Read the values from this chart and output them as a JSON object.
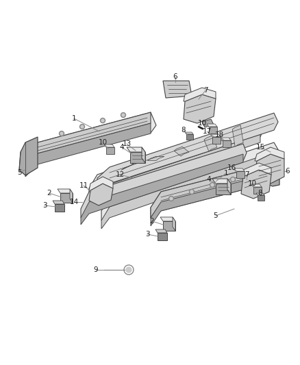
{
  "background_color": "#ffffff",
  "fig_width": 4.38,
  "fig_height": 5.33,
  "dpi": 100,
  "line_color": "#444444",
  "light_fill": "#e8e8e8",
  "mid_fill": "#cccccc",
  "dark_fill": "#aaaaaa",
  "darker_fill": "#888888",
  "callout_line_color": "#888888",
  "callout_text_color": "#222222",
  "callout_fontsize": 7.5
}
